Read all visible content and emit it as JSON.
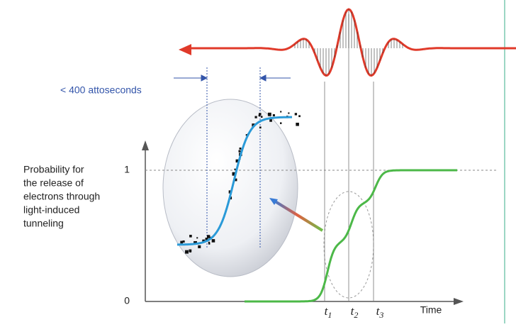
{
  "annotation": "< 400 attoseconds",
  "y_axis_label": [
    "Probability for",
    "the release of",
    "electrons through",
    "light-induced",
    "tunneling"
  ],
  "y_levels": [
    "1",
    "0"
  ],
  "x_axis_label": "Time",
  "time_markers": [
    {
      "letter": "t",
      "index": "1"
    },
    {
      "letter": "t",
      "index": "2"
    },
    {
      "letter": "t",
      "index": "3"
    }
  ]
}
